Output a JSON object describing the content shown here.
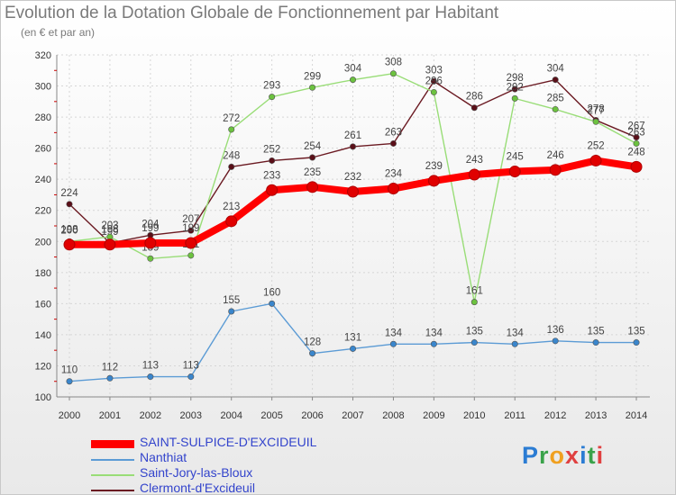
{
  "title": "Evolution de la Dotation Globale de Fonctionnement par Habitant",
  "subtitle": "(en € et par an)",
  "logo": {
    "text": "Proxiti",
    "colors": [
      "#2b7cd3",
      "#3aa24a",
      "#f0a020",
      "#e04040",
      "#2b7cd3",
      "#3aa24a",
      "#e04040"
    ]
  },
  "chart_data": {
    "type": "line",
    "title": "Evolution de la Dotation Globale de Fonctionnement par Habitant",
    "ylabel": "(en € et par an)",
    "x": [
      2000,
      2001,
      2002,
      2003,
      2004,
      2005,
      2006,
      2007,
      2008,
      2009,
      2010,
      2011,
      2012,
      2013,
      2014
    ],
    "ylim": [
      100,
      320
    ],
    "yticks": [
      100,
      120,
      140,
      160,
      180,
      200,
      220,
      240,
      260,
      280,
      300,
      320
    ],
    "grid": true,
    "series": [
      {
        "name": "Clermont-d'Excideuil",
        "color": "#6b1a22",
        "point_color": "#5a0f18",
        "values": [
          224,
          199,
          204,
          207,
          248,
          252,
          254,
          261,
          263,
          303,
          286,
          298,
          304,
          278,
          267
        ]
      },
      {
        "name": "Saint-Jory-las-Bloux",
        "color": "#99dd77",
        "point_color": "#6cc23f",
        "values": [
          200,
          203,
          189,
          191,
          272,
          293,
          299,
          304,
          308,
          296,
          161,
          292,
          285,
          277,
          263
        ]
      },
      {
        "name": "Nanthiat",
        "color": "#5b9bd5",
        "point_color": "#3a86cc",
        "values": [
          110,
          112,
          113,
          113,
          155,
          160,
          128,
          131,
          134,
          134,
          135,
          134,
          136,
          135,
          135
        ]
      },
      {
        "name": "SAINT-SULPICE-D'EXCIDEUIL",
        "color": "#ff0000",
        "point_color": "#e00000",
        "values": [
          198,
          198,
          199,
          199,
          213,
          233,
          235,
          232,
          234,
          239,
          243,
          245,
          246,
          252,
          248
        ]
      }
    ],
    "legend_order": [
      "SAINT-SULPICE-D'EXCIDEUIL",
      "Nanthiat",
      "Saint-Jory-las-Bloux",
      "Clermont-d'Excideuil"
    ]
  }
}
